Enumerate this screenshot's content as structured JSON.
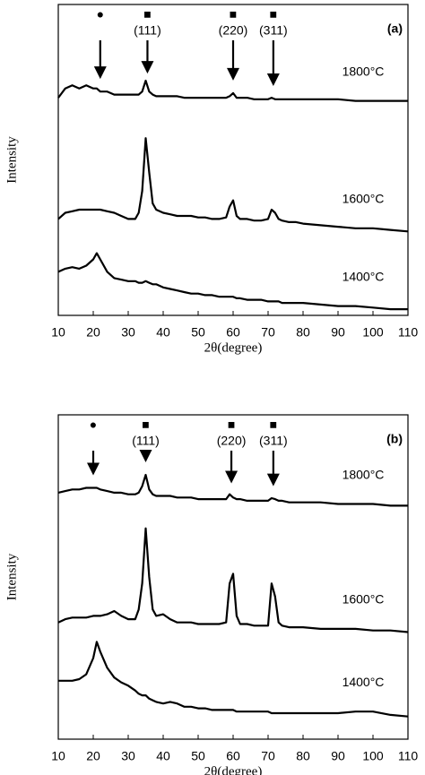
{
  "chart_data": [
    {
      "type": "line",
      "panel_label": "(a)",
      "xlabel": "2θ(degree)",
      "ylabel": "Intensity",
      "xlim": [
        10,
        110
      ],
      "xticks": [
        10,
        20,
        30,
        40,
        50,
        60,
        70,
        80,
        90,
        100,
        110
      ],
      "ylim": [
        0,
        100
      ],
      "x": [
        10,
        12,
        14,
        16,
        18,
        20,
        21,
        22,
        24,
        26,
        28,
        30,
        32,
        33,
        34,
        35,
        36,
        37,
        38,
        40,
        42,
        44,
        46,
        48,
        50,
        52,
        54,
        56,
        58,
        59,
        60,
        61,
        62,
        64,
        66,
        68,
        70,
        71,
        72,
        73,
        74,
        76,
        78,
        80,
        85,
        90,
        95,
        100,
        105,
        110
      ],
      "series": [
        {
          "name": "1800°C",
          "color": "#000000",
          "values": [
            70,
            73,
            74,
            73,
            74,
            73,
            73,
            72,
            72,
            71,
            71,
            71,
            71,
            71,
            72,
            75.5,
            72,
            71,
            70.5,
            70.5,
            70.5,
            70.5,
            70,
            70,
            70,
            70,
            70,
            70,
            70,
            70.5,
            71.5,
            70,
            70,
            70,
            69.5,
            69.5,
            69.5,
            70,
            69.5,
            69.5,
            69.5,
            69.5,
            69.5,
            69.5,
            69.5,
            69.5,
            69,
            69,
            69,
            69
          ]
        },
        {
          "name": "1600°C",
          "color": "#000000",
          "values": [
            31,
            33,
            33.5,
            34,
            34,
            34,
            34,
            34,
            33.5,
            33,
            32,
            31,
            31,
            33,
            40,
            57,
            46,
            36,
            34,
            33,
            32.5,
            32,
            32,
            32,
            31.5,
            31.5,
            31,
            31,
            31.5,
            35,
            37,
            32,
            31,
            31,
            30.5,
            30.5,
            31,
            34,
            33,
            31,
            30.5,
            30,
            30,
            29.5,
            29,
            28.5,
            28,
            28,
            27.5,
            27
          ]
        },
        {
          "name": "1400°C",
          "color": "#000000",
          "values": [
            14,
            15,
            15.5,
            15,
            16,
            18,
            20,
            18,
            14,
            12,
            11.5,
            11,
            11,
            10.5,
            10.5,
            11,
            10.5,
            10,
            10,
            9,
            8.5,
            8,
            7.5,
            7,
            7,
            6.5,
            6.5,
            6,
            6,
            6,
            6,
            5.5,
            5.5,
            5,
            5,
            5,
            4.5,
            4.5,
            4.5,
            4.5,
            4,
            4,
            4,
            4,
            3.5,
            3,
            3,
            2.5,
            2,
            2
          ]
        }
      ],
      "annotations": [
        {
          "x": 22,
          "symbol": "●"
        },
        {
          "x": 35.5,
          "symbol": "■",
          "text": "(111)"
        },
        {
          "x": 60,
          "symbol": "■",
          "text": "(220)"
        },
        {
          "x": 71.5,
          "symbol": "■",
          "text": "(311)"
        }
      ]
    },
    {
      "type": "line",
      "panel_label": "(b)",
      "xlabel": "2θ(degree)",
      "ylabel": "Intensity",
      "xlim": [
        10,
        110
      ],
      "xticks": [
        10,
        20,
        30,
        40,
        50,
        60,
        70,
        80,
        90,
        100,
        110
      ],
      "ylim": [
        0,
        100
      ],
      "x": [
        10,
        12,
        14,
        16,
        18,
        20,
        21,
        22,
        24,
        26,
        28,
        30,
        32,
        33,
        34,
        35,
        36,
        37,
        38,
        40,
        42,
        44,
        46,
        48,
        50,
        52,
        54,
        56,
        58,
        59,
        60,
        61,
        62,
        64,
        66,
        68,
        70,
        71,
        72,
        73,
        74,
        76,
        78,
        80,
        85,
        90,
        95,
        100,
        105,
        110
      ],
      "series": [
        {
          "name": "1800°C",
          "color": "#000000",
          "values": [
            76,
            76.5,
            77,
            77,
            77.5,
            77.5,
            77.5,
            77,
            76.5,
            76,
            76,
            75.5,
            75.5,
            76,
            78,
            81.5,
            77,
            75.5,
            75,
            75,
            75,
            74.5,
            74.5,
            74.5,
            74,
            74,
            74,
            74,
            74,
            75.5,
            74.5,
            74,
            74,
            73.5,
            73.5,
            73.5,
            73.5,
            74.3,
            74,
            73.5,
            73.5,
            73,
            73,
            73,
            73,
            72.5,
            72.5,
            72.5,
            72,
            72
          ]
        },
        {
          "name": "1600°C",
          "color": "#000000",
          "values": [
            36,
            37,
            37.5,
            37.5,
            37.5,
            38,
            38,
            38,
            38.5,
            39.5,
            38,
            37,
            37,
            40,
            48,
            65,
            50,
            40,
            38,
            38.5,
            37,
            36,
            36,
            36,
            35.5,
            35.5,
            35.5,
            35.5,
            36,
            48,
            51,
            38,
            35.5,
            35.5,
            35,
            35,
            35,
            48,
            44,
            36,
            35,
            34.5,
            34.5,
            34.5,
            34,
            34,
            34,
            33.5,
            33.5,
            33
          ]
        },
        {
          "name": "1400°C",
          "color": "#000000",
          "values": [
            18,
            18,
            18,
            18.5,
            20,
            25,
            30,
            27,
            22,
            19,
            17.5,
            16.5,
            15,
            14,
            13.5,
            13.5,
            12.5,
            12,
            11.5,
            11,
            11.5,
            11,
            10,
            10,
            9.5,
            9.5,
            9,
            9,
            9,
            9,
            9,
            8.5,
            8.5,
            8.5,
            8.5,
            8.5,
            8.5,
            8,
            8,
            8,
            8,
            8,
            8,
            8,
            8,
            8,
            8.5,
            8.5,
            7.5,
            7
          ]
        }
      ],
      "annotations": [
        {
          "x": 20,
          "symbol": "●"
        },
        {
          "x": 35,
          "symbol": "■",
          "text": "(111)"
        },
        {
          "x": 59.5,
          "symbol": "■",
          "text": "(220)"
        },
        {
          "x": 71.5,
          "symbol": "■",
          "text": "(311)"
        }
      ]
    }
  ]
}
